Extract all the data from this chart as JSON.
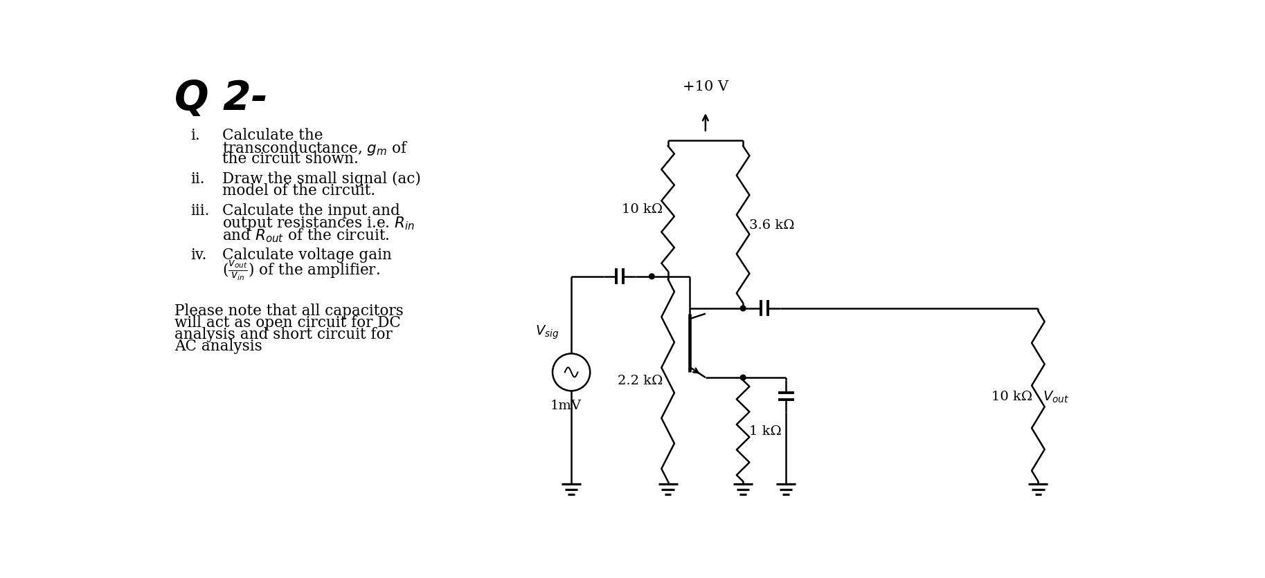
{
  "bg_color": "#ffffff",
  "items": [
    {
      "label": "i.",
      "text_lines": [
        "Calculate the",
        "transconductance, $g_m$ of",
        "the circuit shown."
      ]
    },
    {
      "label": "ii.",
      "text_lines": [
        "Draw the small signal (ac)",
        "model of the circuit."
      ]
    },
    {
      "label": "iii.",
      "text_lines": [
        "Calculate the input and",
        "output resistances i.e. $R_{in}$",
        "and $R_{out}$ of the circuit."
      ]
    },
    {
      "label": "iv.",
      "text_lines": [
        "Calculate voltage gain",
        "($\\frac{v_{out}}{v_{in}}$) of the amplifier."
      ]
    }
  ],
  "note_lines": [
    "Please note that all capacitors",
    "will act as open circuit for DC",
    "analysis and short circuit for",
    "AC analysis"
  ],
  "vcc_label": "+10 V",
  "r1_label": "10 kΩ",
  "r2_label": "3.6 kΩ",
  "r3_label": "2.2 kΩ",
  "r4_label": "1 kΩ",
  "r5_label": "10 kΩ",
  "vsig_label": "V_{sig}",
  "vmv_label": "1mV",
  "vout_label": "V_{out}",
  "lw": 1.8
}
